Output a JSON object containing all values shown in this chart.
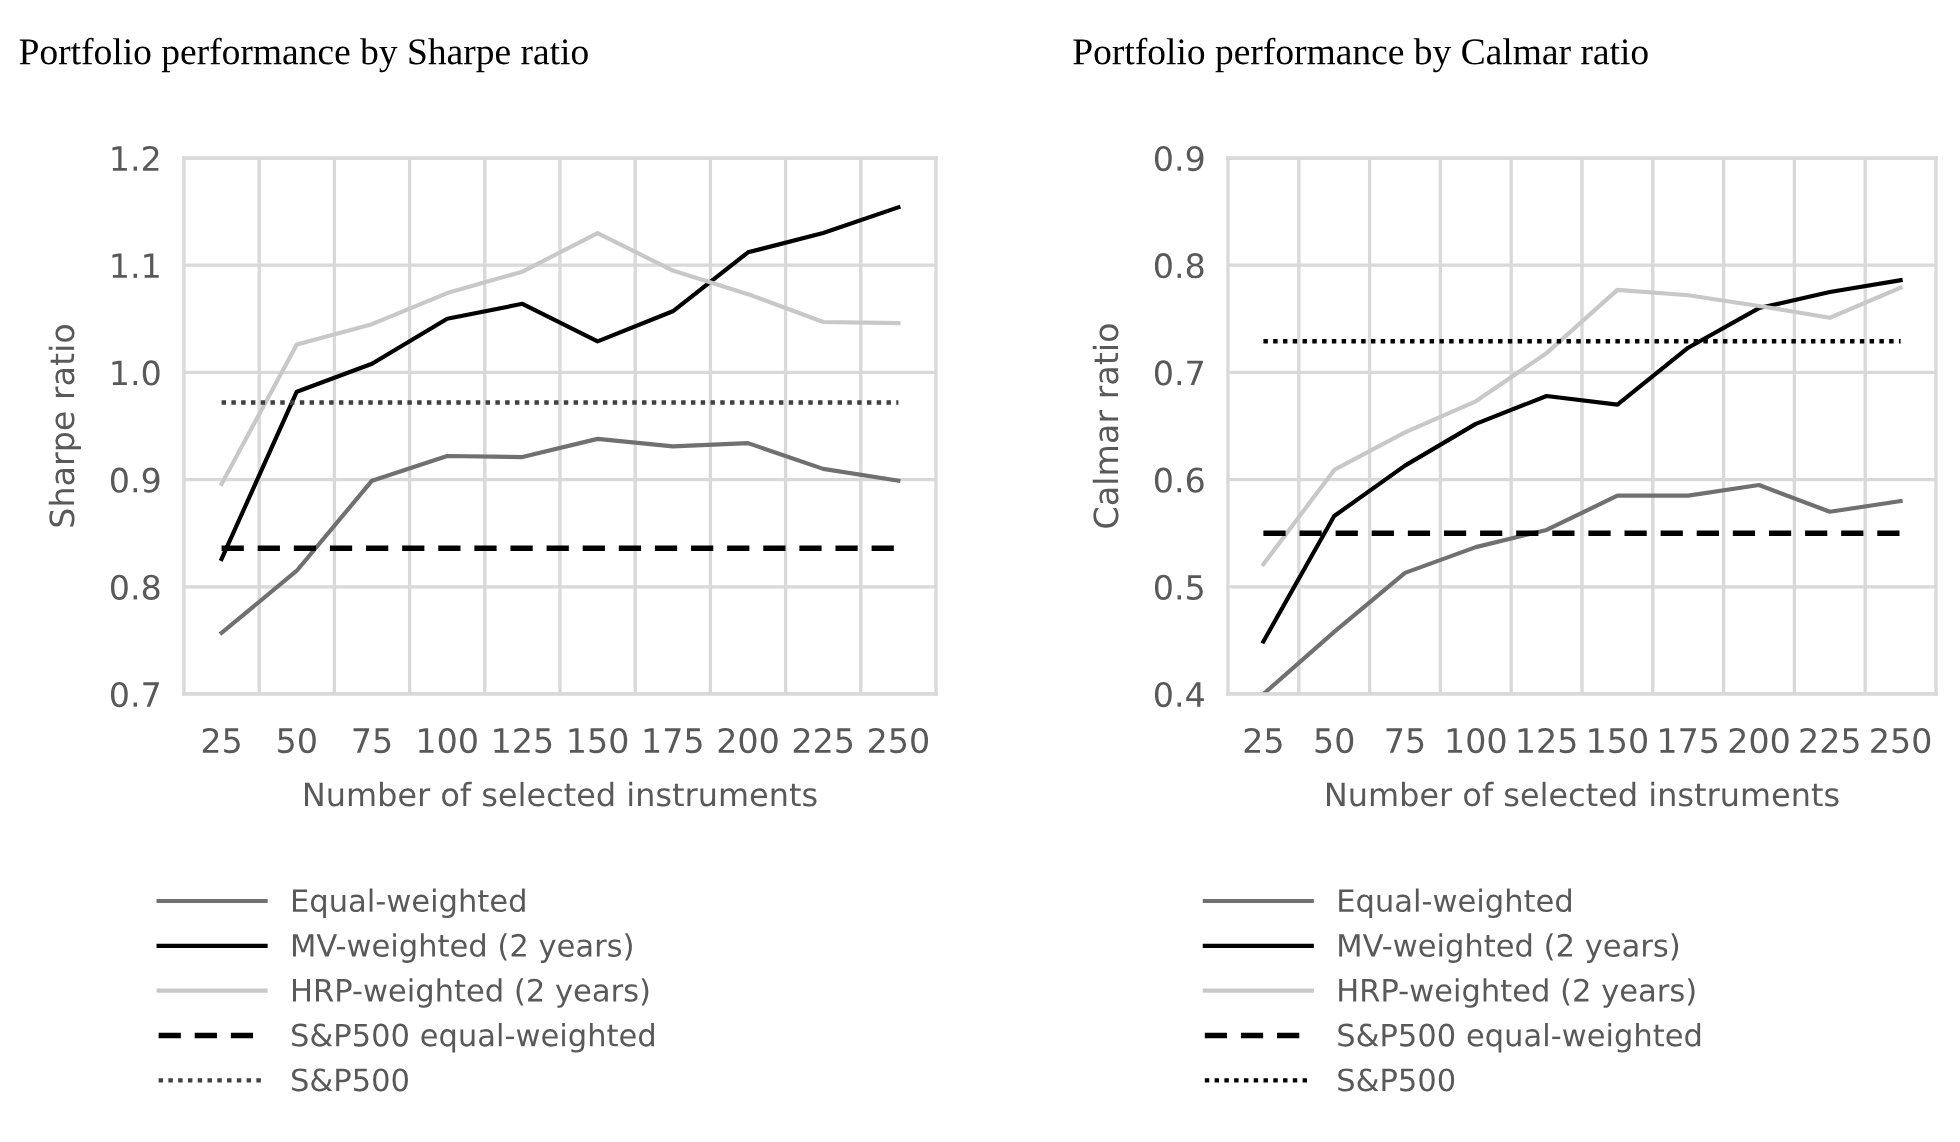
{
  "chart_data": [
    {
      "type": "line",
      "title": "Portfolio performance by Sharpe ratio",
      "xlabel": "Number of selected instruments",
      "ylabel": "Sharpe ratio",
      "categories": [
        "25",
        "50",
        "75",
        "100",
        "125",
        "150",
        "175",
        "200",
        "225",
        "250"
      ],
      "ylim": [
        0.7,
        1.2
      ],
      "yticks": [
        0.7,
        0.8,
        0.9,
        {
          "value": 1.0,
          "label": "1.0"
        },
        1.1,
        1.2
      ],
      "grid": true,
      "legend": "bottom",
      "series": [
        {
          "name": "Equal-weighted",
          "color": "#707070",
          "line_style": "solid",
          "values": [
            0.757,
            0.815,
            0.899,
            0.922,
            0.921,
            0.938,
            0.931,
            0.934,
            0.91,
            0.899
          ]
        },
        {
          "name": "MV-weighted (2 years)",
          "color": "#000000",
          "line_style": "solid",
          "values": [
            0.826,
            0.982,
            1.008,
            1.05,
            1.064,
            1.029,
            1.057,
            1.112,
            1.13,
            1.154
          ]
        },
        {
          "name": "HRP-weighted (2 years)",
          "color": "#c8c8c8",
          "line_style": "solid",
          "values": [
            0.896,
            1.026,
            1.045,
            1.074,
            1.094,
            1.13,
            1.095,
            1.073,
            1.047,
            1.046
          ]
        },
        {
          "name": "S&P500 equal-weighted",
          "color": "#000000",
          "line_style": "dashed",
          "values": [
            0.836,
            0.836,
            0.836,
            0.836,
            0.836,
            0.836,
            0.836,
            0.836,
            0.836,
            0.836
          ]
        },
        {
          "name": "S&P500",
          "color": "#404040",
          "line_style": "dotted",
          "values": [
            0.972,
            0.972,
            0.972,
            0.972,
            0.972,
            0.972,
            0.972,
            0.972,
            0.972,
            0.972
          ]
        }
      ]
    },
    {
      "type": "line",
      "title": "Portfolio performance by Calmar ratio",
      "xlabel": "Number of selected instruments",
      "ylabel": "Calmar ratio",
      "categories": [
        "25",
        "50",
        "75",
        "100",
        "125",
        "150",
        "175",
        "200",
        "225",
        "250"
      ],
      "ylim": [
        0.4,
        0.9
      ],
      "yticks": [
        0.4,
        0.5,
        0.6,
        0.7,
        0.8,
        0.9
      ],
      "grid": true,
      "legend": "bottom",
      "series": [
        {
          "name": "Equal-weighted",
          "color": "#707070",
          "line_style": "solid",
          "values": [
            0.4,
            0.458,
            0.513,
            0.537,
            0.553,
            0.585,
            0.585,
            0.595,
            0.57,
            0.58
          ]
        },
        {
          "name": "MV-weighted (2 years)",
          "color": "#000000",
          "line_style": "solid",
          "values": [
            0.449,
            0.566,
            0.613,
            0.652,
            0.678,
            0.67,
            0.723,
            0.76,
            0.775,
            0.786
          ]
        },
        {
          "name": "HRP-weighted (2 years)",
          "color": "#c8c8c8",
          "line_style": "solid",
          "values": [
            0.521,
            0.609,
            0.644,
            0.673,
            0.718,
            0.777,
            0.772,
            0.762,
            0.751,
            0.779
          ]
        },
        {
          "name": "S&P500 equal-weighted",
          "color": "#000000",
          "line_style": "dashed",
          "values": [
            0.55,
            0.55,
            0.55,
            0.55,
            0.55,
            0.55,
            0.55,
            0.55,
            0.55,
            0.55
          ]
        },
        {
          "name": "S&P500",
          "color": "#000000",
          "line_style": "dotted",
          "values": [
            0.729,
            0.729,
            0.729,
            0.729,
            0.729,
            0.729,
            0.729,
            0.729,
            0.729,
            0.729
          ]
        }
      ]
    }
  ]
}
